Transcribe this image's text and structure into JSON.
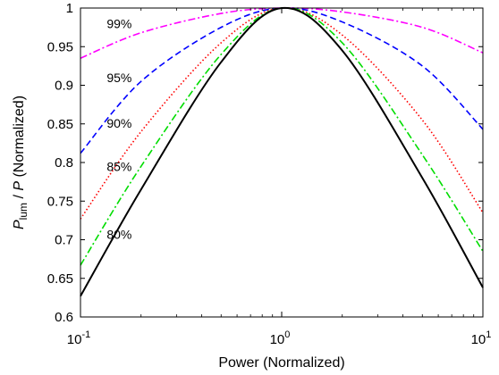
{
  "chart_data": {
    "type": "line",
    "xlabel": "Power (Normalized)",
    "ylabel_main": "P",
    "ylabel_sub": "lum",
    "ylabel_slash": " / ",
    "ylabel_p": "P",
    "ylabel_rest": " (Normalized)",
    "x_scale": "log",
    "xlim": [
      0.1,
      10
    ],
    "ylim": [
      0.6,
      1.0
    ],
    "x_ticks": [
      {
        "value": 0.1,
        "base": "10",
        "exp": "-1"
      },
      {
        "value": 1,
        "base": "10",
        "exp": "0"
      },
      {
        "value": 10,
        "base": "10",
        "exp": "1"
      }
    ],
    "y_ticks": [
      {
        "value": 0.6,
        "label": "0.6"
      },
      {
        "value": 0.65,
        "label": "0.65"
      },
      {
        "value": 0.7,
        "label": "0.7"
      },
      {
        "value": 0.75,
        "label": "0.75"
      },
      {
        "value": 0.8,
        "label": "0.8"
      },
      {
        "value": 0.85,
        "label": "0.85"
      },
      {
        "value": 0.9,
        "label": "0.9"
      },
      {
        "value": 0.95,
        "label": "0.95"
      },
      {
        "value": 1,
        "label": "1"
      }
    ],
    "grid": false,
    "box": true,
    "series": [
      {
        "name": "99%",
        "color": "#ff00ff",
        "dash": "dashdot",
        "x": [
          0.1,
          0.2,
          0.5,
          1,
          2,
          5,
          10
        ],
        "y": [
          0.935,
          0.968,
          0.993,
          1.0,
          0.995,
          0.975,
          0.942
        ]
      },
      {
        "name": "95%",
        "color": "#0000ff",
        "dash": "dash",
        "x": [
          0.1,
          0.2,
          0.5,
          1,
          2,
          5,
          10
        ],
        "y": [
          0.812,
          0.905,
          0.975,
          1.0,
          0.982,
          0.925,
          0.843
        ]
      },
      {
        "name": "90%",
        "color": "#ff0000",
        "dash": "dot",
        "x": [
          0.1,
          0.2,
          0.5,
          1,
          2,
          5,
          10
        ],
        "y": [
          0.727,
          0.84,
          0.955,
          1.0,
          0.965,
          0.855,
          0.735
        ]
      },
      {
        "name": "85%",
        "color": "#00dd00",
        "dash": "dashdot",
        "x": [
          0.1,
          0.2,
          0.5,
          1,
          2,
          5,
          10
        ],
        "y": [
          0.667,
          0.795,
          0.94,
          1.0,
          0.955,
          0.81,
          0.685
        ]
      },
      {
        "name": "80%",
        "color": "#000000",
        "dash": "solid",
        "x": [
          0.1,
          0.2,
          0.5,
          1,
          2,
          5,
          10
        ],
        "y": [
          0.627,
          0.765,
          0.93,
          1.0,
          0.945,
          0.78,
          0.638
        ]
      }
    ],
    "annotations": [
      {
        "text": "99%",
        "x": 0.135,
        "y": 0.974
      },
      {
        "text": "95%",
        "x": 0.135,
        "y": 0.904
      },
      {
        "text": "90%",
        "x": 0.135,
        "y": 0.845
      },
      {
        "text": "85%",
        "x": 0.135,
        "y": 0.789
      },
      {
        "text": "80%",
        "x": 0.135,
        "y": 0.701
      }
    ]
  }
}
